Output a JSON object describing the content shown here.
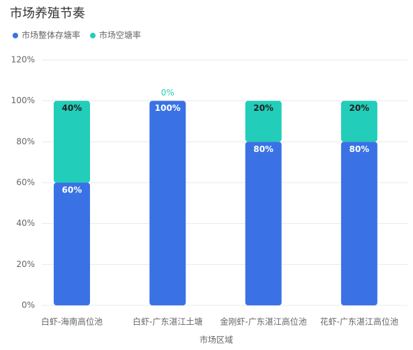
{
  "chart_data": {
    "type": "stacked_bar",
    "title": "市场养殖节奏",
    "categories": [
      "白虾-海南高位池",
      "白虾-广东湛江土塘",
      "金刚虾-广东湛江高位池",
      "花虾-广东湛江高位池"
    ],
    "series": [
      {
        "name": "市场整体存塘率",
        "color": "#3a72e6",
        "values": [
          60,
          100,
          80,
          80
        ],
        "value_labels": [
          "60%",
          "100%",
          "80%",
          "80%"
        ]
      },
      {
        "name": "市场空塘率",
        "color": "#22cdb9",
        "values": [
          40,
          0,
          20,
          20
        ],
        "value_labels": [
          "40%",
          "0%",
          "20%",
          "20%"
        ]
      }
    ],
    "xlabel": "市场区域",
    "ylim": [
      0,
      120
    ],
    "yticks": [
      {
        "value": 0,
        "label": "0%"
      },
      {
        "value": 20,
        "label": "20%"
      },
      {
        "value": 40,
        "label": "40%"
      },
      {
        "value": 60,
        "label": "60%"
      },
      {
        "value": 80,
        "label": "80%"
      },
      {
        "value": 100,
        "label": "100%"
      },
      {
        "value": 120,
        "label": "120%"
      }
    ],
    "grid": true,
    "legend": "top-left"
  }
}
